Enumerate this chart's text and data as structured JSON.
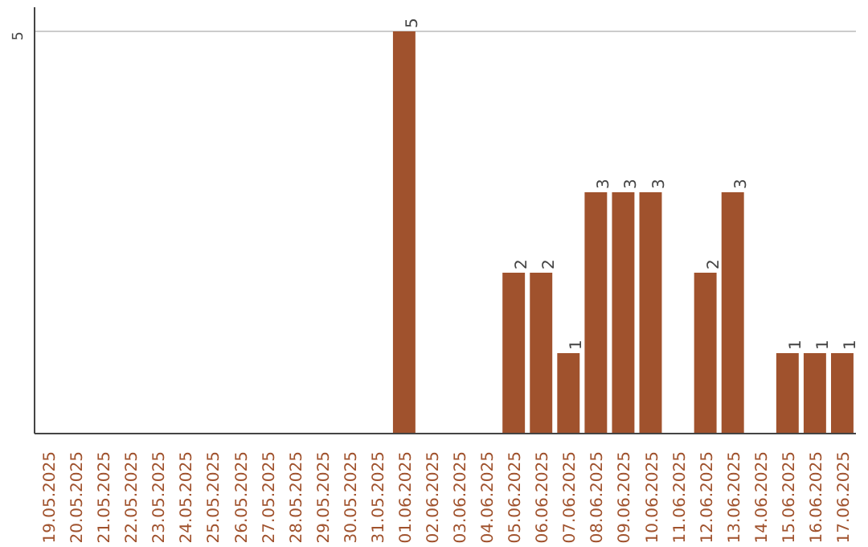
{
  "chart_data": {
    "type": "bar",
    "categories": [
      "19.05.2025",
      "20.05.2025",
      "21.05.2025",
      "22.05.2025",
      "23.05.2025",
      "24.05.2025",
      "25.05.2025",
      "26.05.2025",
      "27.05.2025",
      "28.05.2025",
      "29.05.2025",
      "30.05.2025",
      "31.05.2025",
      "01.06.2025",
      "02.06.2025",
      "03.06.2025",
      "04.06.2025",
      "05.06.2025",
      "06.06.2025",
      "07.06.2025",
      "08.06.2025",
      "09.06.2025",
      "10.06.2025",
      "11.06.2025",
      "12.06.2025",
      "13.06.2025",
      "14.06.2025",
      "15.06.2025",
      "16.06.2025",
      "17.06.2025"
    ],
    "values": [
      null,
      null,
      null,
      null,
      null,
      null,
      null,
      null,
      null,
      null,
      null,
      null,
      null,
      5,
      null,
      null,
      null,
      2,
      2,
      1,
      3,
      3,
      3,
      null,
      2,
      3,
      null,
      1,
      1,
      1
    ],
    "data_labels": true,
    "color": "#a0522d",
    "ylim": [
      0,
      5.3
    ],
    "yticks": [
      {
        "value": 0,
        "label": null
      },
      5
    ],
    "grid": "y"
  }
}
